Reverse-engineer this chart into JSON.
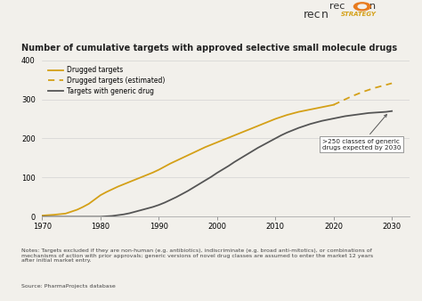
{
  "title": "Number of cumulative targets with approved selective small molecule drugs",
  "ylim": [
    0,
    400
  ],
  "xlim": [
    1970,
    2033
  ],
  "yticks": [
    0,
    100,
    200,
    300,
    400
  ],
  "xticks": [
    1970,
    1980,
    1990,
    2000,
    2010,
    2020,
    2030
  ],
  "drugged_x": [
    1970,
    1972,
    1974,
    1976,
    1977,
    1978,
    1979,
    1980,
    1981,
    1982,
    1983,
    1984,
    1985,
    1986,
    1987,
    1988,
    1989,
    1990,
    1991,
    1992,
    1993,
    1994,
    1995,
    1996,
    1997,
    1998,
    1999,
    2000,
    2001,
    2002,
    2003,
    2004,
    2005,
    2006,
    2007,
    2008,
    2009,
    2010,
    2011,
    2012,
    2013,
    2014,
    2015,
    2016,
    2017,
    2018,
    2019,
    2020
  ],
  "drugged_y": [
    3,
    5,
    8,
    18,
    25,
    33,
    44,
    55,
    63,
    70,
    77,
    83,
    89,
    95,
    101,
    107,
    113,
    120,
    128,
    136,
    143,
    150,
    157,
    164,
    171,
    178,
    184,
    190,
    196,
    202,
    208,
    214,
    220,
    226,
    232,
    238,
    244,
    250,
    255,
    260,
    264,
    268,
    271,
    274,
    277,
    280,
    283,
    286
  ],
  "drugged_est_x": [
    2020,
    2021,
    2022,
    2023,
    2024,
    2025,
    2026,
    2027,
    2028,
    2029,
    2030
  ],
  "drugged_est_y": [
    286,
    293,
    300,
    307,
    313,
    319,
    324,
    329,
    333,
    337,
    341
  ],
  "generic_x": [
    1970,
    1975,
    1979,
    1980,
    1981,
    1982,
    1983,
    1984,
    1985,
    1986,
    1987,
    1988,
    1989,
    1990,
    1991,
    1992,
    1993,
    1994,
    1995,
    1996,
    1997,
    1998,
    1999,
    2000,
    2001,
    2002,
    2003,
    2004,
    2005,
    2006,
    2007,
    2008,
    2009,
    2010,
    2011,
    2012,
    2013,
    2014,
    2015,
    2016,
    2017,
    2018,
    2019,
    2020,
    2021,
    2022,
    2023,
    2024,
    2025,
    2026,
    2027,
    2028,
    2029,
    2030
  ],
  "generic_y": [
    0,
    0,
    0,
    0,
    1,
    2,
    4,
    6,
    9,
    13,
    17,
    21,
    25,
    30,
    36,
    43,
    50,
    58,
    66,
    75,
    84,
    93,
    102,
    112,
    121,
    130,
    140,
    149,
    158,
    167,
    176,
    184,
    192,
    200,
    208,
    215,
    221,
    227,
    232,
    237,
    241,
    245,
    248,
    251,
    254,
    257,
    259,
    261,
    263,
    265,
    266,
    267,
    268,
    270
  ],
  "drugged_color": "#D4A017",
  "generic_color": "#555555",
  "annotation_text": ">250 classes of generic\ndrugs expected by 2030",
  "notes_text": "Notes: Targets excluded if they are non-human (e.g. antibiotics), indiscriminate (e.g. broad anti-mitotics), or combinations of\nmechanisms of action with prior approvals; generic versions of novel drug classes are assumed to enter the market 12 years\nafter initial market entry.",
  "source_text": "Source: PharmaProjects database",
  "legend_labels": [
    "Drugged targets",
    "Drugged targets (estimated)",
    "Targets with generic drug"
  ],
  "background_color": "#f2f0eb"
}
